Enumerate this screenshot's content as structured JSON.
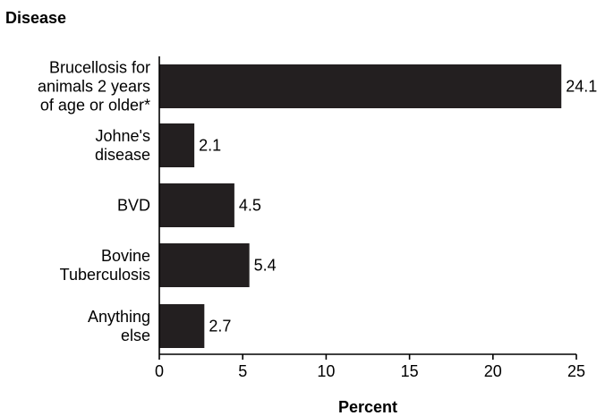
{
  "chart_data": {
    "type": "bar",
    "orientation": "horizontal",
    "title": "Disease",
    "xlabel": "Percent",
    "ylabel": "",
    "xlim": [
      0,
      25
    ],
    "ticks": [
      "0",
      "5",
      "10",
      "15",
      "20",
      "25"
    ],
    "tick_values": [
      0,
      5,
      10,
      15,
      20,
      25
    ],
    "categories": [
      [
        "Brucellosis for",
        "animals 2 years",
        "of age or older*"
      ],
      [
        "Johne's",
        "disease"
      ],
      [
        "BVD"
      ],
      [
        "Bovine",
        "Tuberculosis"
      ],
      [
        "Anything",
        "else"
      ]
    ],
    "values": [
      24.1,
      2.1,
      4.5,
      5.4,
      2.7
    ],
    "value_labels": [
      "24.1",
      "2.1",
      "4.5",
      "5.4",
      "2.7"
    ],
    "grid": false,
    "bar_color": "#231f20"
  }
}
